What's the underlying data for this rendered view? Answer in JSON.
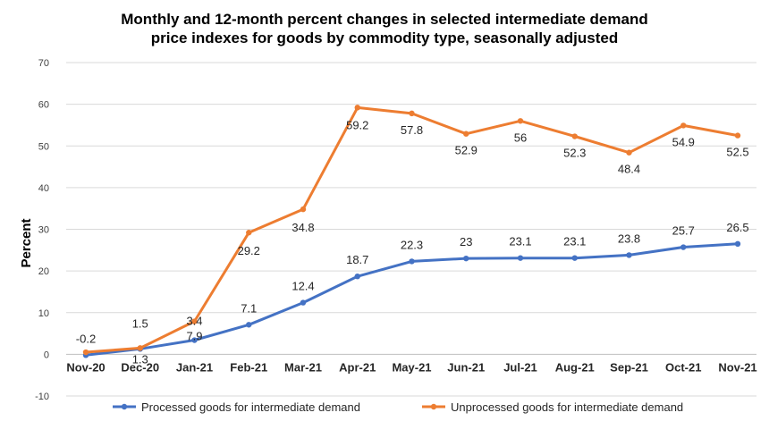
{
  "chart_data": {
    "type": "line",
    "title": [
      "Monthly and 12-month percent changes in selected intermediate demand",
      "price indexes for goods by commodity type, seasonally adjusted"
    ],
    "xlabel": "",
    "ylabel": "Percent",
    "ylim": [
      -10,
      70
    ],
    "yticks": [
      -10,
      0,
      10,
      20,
      30,
      40,
      50,
      60,
      70
    ],
    "grid": true,
    "legend_position": "bottom",
    "categories": [
      "Nov-20",
      "Dec-20",
      "Jan-21",
      "Feb-21",
      "Mar-21",
      "Apr-21",
      "May-21",
      "Jun-21",
      "Jul-21",
      "Aug-21",
      "Sep-21",
      "Oct-21",
      "Nov-21"
    ],
    "series": [
      {
        "name": "Processed goods for intermediate demand",
        "color": "#4472C4",
        "values": [
          -0.2,
          1.3,
          3.4,
          7.1,
          12.4,
          18.7,
          22.3,
          23,
          23.1,
          23.1,
          23.8,
          25.7,
          26.5
        ],
        "labels": [
          "-0.2",
          "1.3",
          "3.4",
          "7.1",
          "12.4",
          "18.7",
          "22.3",
          "23",
          "23.1",
          "23.1",
          "23.8",
          "25.7",
          "26.5"
        ]
      },
      {
        "name": "Unprocessed goods for intermediate demand",
        "color": "#ED7D31",
        "values": [
          0.5,
          1.5,
          7.9,
          29.2,
          34.8,
          59.2,
          57.8,
          52.9,
          56,
          52.3,
          48.4,
          54.9,
          52.5
        ],
        "labels": [
          "",
          "1.5",
          "7.9",
          "29.2",
          "34.8",
          "59.2",
          "57.8",
          "52.9",
          "56",
          "52.3",
          "48.4",
          "54.9",
          "52.5"
        ]
      }
    ]
  }
}
